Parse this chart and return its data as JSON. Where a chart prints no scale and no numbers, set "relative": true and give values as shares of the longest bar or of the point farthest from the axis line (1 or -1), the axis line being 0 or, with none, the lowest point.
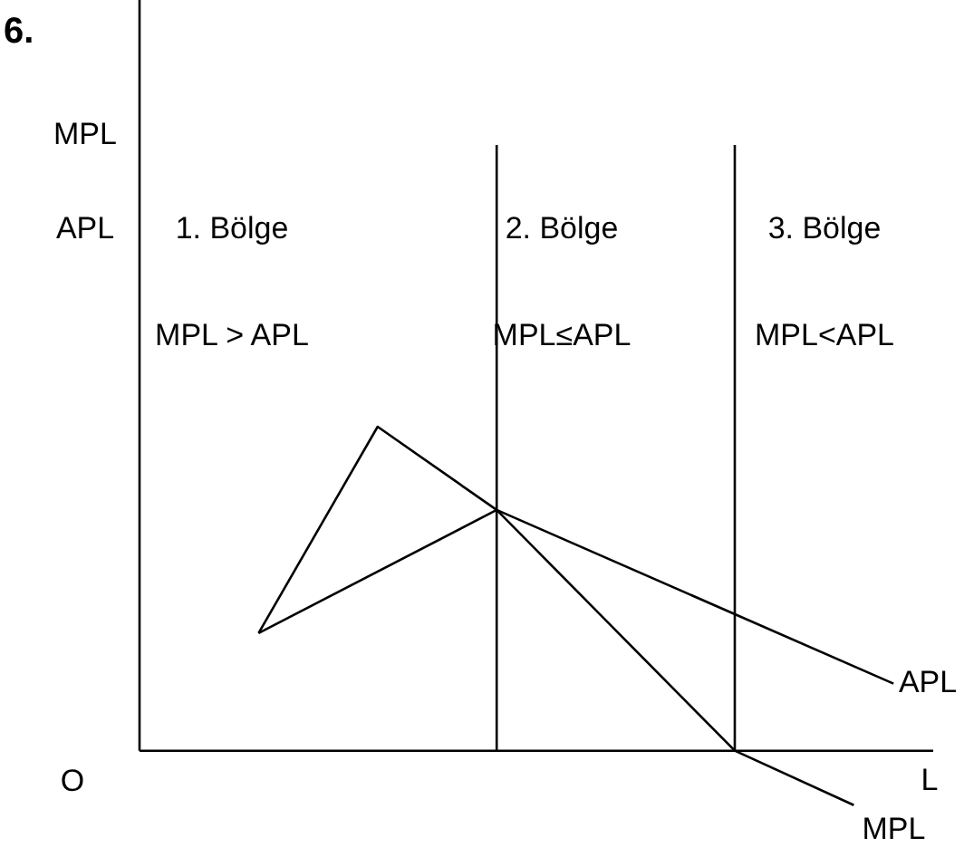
{
  "chart_data": {
    "type": "line",
    "title": "6.",
    "xlabel": "L",
    "relative": true,
    "legend": false,
    "marker": "none",
    "categories": [
      null,
      null,
      null,
      null,
      null,
      null,
      null,
      null,
      null,
      null,
      null,
      null,
      null,
      null,
      null,
      null,
      null,
      null,
      null,
      null,
      null
    ],
    "series": [
      {
        "name": "MPL",
        "color": "#000000",
        "values": [
          null,
          null,
          null,
          0.363,
          null,
          null,
          1,
          null,
          null,
          0.743,
          null,
          null,
          null,
          null,
          null,
          0,
          null,
          null,
          -0.168,
          null,
          null
        ]
      },
      {
        "name": "APL",
        "color": "#000000",
        "values": [
          null,
          null,
          null,
          0.363,
          null,
          null,
          null,
          null,
          null,
          0.743,
          null,
          null,
          null,
          null,
          null,
          null,
          null,
          null,
          null,
          0.207,
          null
        ]
      }
    ],
    "annotations": [
      "O",
      "MPL",
      "APL",
      "1. Bölge",
      "MPL > APL",
      "2. Bölge",
      "MPL≤APL",
      "3. Bölge",
      "MPL<APL"
    ]
  }
}
